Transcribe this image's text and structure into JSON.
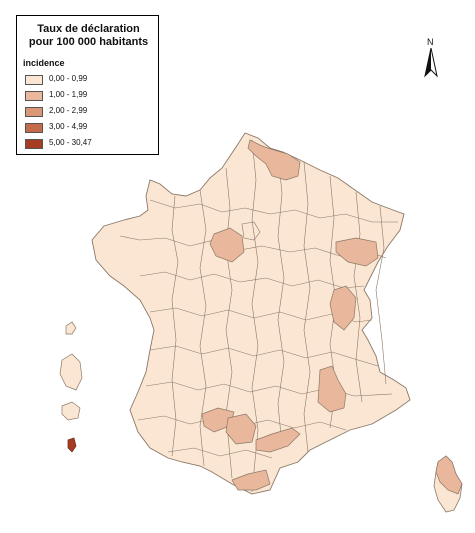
{
  "legend": {
    "title_line1": "Taux de déclaration",
    "title_line2": "pour 100 000 habitants",
    "subtitle": "incidence",
    "classes": [
      {
        "label": "0,00 - 0,99",
        "color": "#fae6d2"
      },
      {
        "label": "1,00 - 1,99",
        "color": "#e9b79b"
      },
      {
        "label": "2,00 - 2,99",
        "color": "#d99778"
      },
      {
        "label": "3,00 - 4,99",
        "color": "#c46b4c"
      },
      {
        "label": "5,00 - 30,47",
        "color": "#a63d22"
      }
    ]
  },
  "north_arrow": {
    "letter": "N",
    "icon": "north-arrow-icon"
  },
  "map": {
    "border_color": "#8a7868",
    "highlighted_regions": [
      {
        "name": "nord",
        "class": "1,00 - 1,99"
      },
      {
        "name": "loiret",
        "class": "1,00 - 1,99"
      },
      {
        "name": "haute-marne",
        "class": "1,00 - 1,99"
      },
      {
        "name": "ain",
        "class": "1,00 - 1,99"
      },
      {
        "name": "drome",
        "class": "1,00 - 1,99"
      },
      {
        "name": "tarn-et-garonne",
        "class": "1,00 - 1,99"
      },
      {
        "name": "tarn",
        "class": "1,00 - 1,99"
      },
      {
        "name": "herault",
        "class": "1,00 - 1,99"
      },
      {
        "name": "pyrenees-orientales",
        "class": "1,00 - 1,99"
      },
      {
        "name": "haute-corse",
        "class": "1,00 - 1,99"
      },
      {
        "name": "overseas-island",
        "class": "5,00 - 30,47"
      }
    ]
  }
}
